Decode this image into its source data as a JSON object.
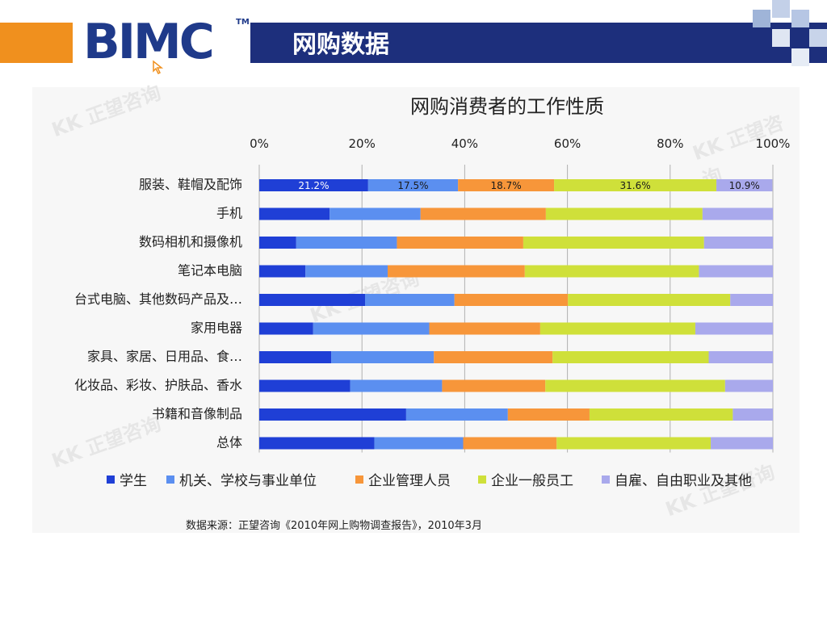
{
  "header": {
    "logo": "BIMC",
    "tm": "TM",
    "slide_title": "网购数据",
    "colors": {
      "orange": "#f0901e",
      "navy": "#1d2f7c",
      "logo": "#1f3a8a"
    }
  },
  "chart_data": {
    "type": "bar",
    "orientation": "horizontal",
    "stacked": "percent",
    "title": "网购消费者的工作性质",
    "x_ticks": [
      "0%",
      "20%",
      "40%",
      "60%",
      "80%",
      "100%"
    ],
    "xlim": [
      0,
      100
    ],
    "grid": true,
    "legend_position": "bottom",
    "categories": [
      "服装、鞋帽及配饰",
      "手机",
      "数码相机和摄像机",
      "笔记本电脑",
      "台式电脑、其他数码产品及…",
      "家用电器",
      "家具、家居、日用品、食…",
      "化妆品、彩妆、护肤品、香水",
      "书籍和音像制品",
      "总体"
    ],
    "series": [
      {
        "name": "学生",
        "color": "#1f3fd6",
        "values": [
          21.2,
          13.7,
          7.2,
          9.0,
          20.6,
          10.5,
          14.0,
          17.7,
          28.6,
          22.4
        ]
      },
      {
        "name": "机关、学校与事业单位",
        "color": "#5b8ff0",
        "values": [
          17.5,
          17.7,
          19.6,
          16.0,
          17.4,
          22.6,
          20.0,
          17.9,
          19.8,
          17.3
        ]
      },
      {
        "name": "企业管理人员",
        "color": "#f7963a",
        "values": [
          18.7,
          24.4,
          24.6,
          26.7,
          22.1,
          21.6,
          23.1,
          20.1,
          15.9,
          18.2
        ]
      },
      {
        "name": "企业一般员工",
        "color": "#cfe03a",
        "values": [
          31.6,
          30.5,
          35.2,
          33.9,
          31.6,
          30.2,
          30.4,
          35.0,
          27.9,
          30.0
        ]
      },
      {
        "name": "自雇、自由职业及其他",
        "color": "#a9a9ec",
        "values": [
          10.9,
          13.7,
          13.4,
          14.4,
          8.3,
          15.1,
          12.5,
          9.3,
          7.8,
          12.1
        ]
      }
    ],
    "data_labels": [
      "21.2%",
      "17.5%",
      "18.7%",
      "31.6%",
      "10.9%"
    ]
  },
  "source_note": "数据来源：正望咨询《2010年网上购物调查报告》，2010年3月",
  "watermark_text": "正望咨询"
}
